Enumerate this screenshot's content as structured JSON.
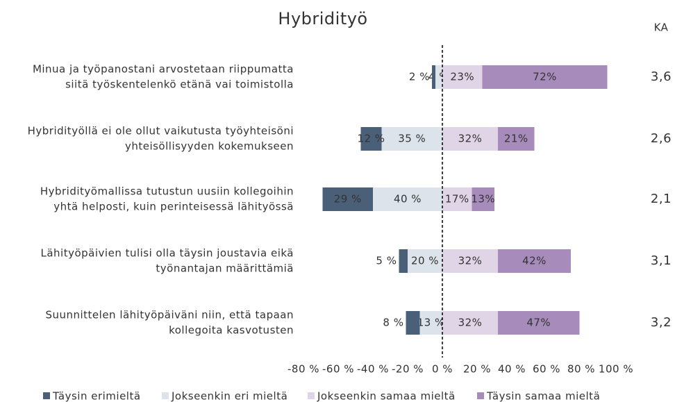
{
  "chart_data": {
    "type": "diverging_bar",
    "title": "Hybridityö",
    "ka_label": "KA",
    "categories": [
      [
        "Minua ja työpanostani arvostetaan riippumatta",
        "siitä työskentelenkö etänä vai toimistolla"
      ],
      [
        "Hybridityöllä ei ole ollut vaikutusta työyhteisöni",
        "yhteisöllisyyden kokemukseen"
      ],
      [
        "Hybridityömallissa tutustun uusiin kollegoihin",
        "yhtä helposti, kuin perinteisessä lähityössä"
      ],
      [
        "Lähityöpäivien tulisi olla täysin joustavia eikä",
        "työnantajan määrittämiä"
      ],
      [
        "Suunnittelen lähityöpäiväni niin, että tapaan",
        "kollegoita kasvotusten"
      ]
    ],
    "ka": [
      "3,6",
      "2,6",
      "2,1",
      "3,1",
      "3,2"
    ],
    "series": [
      {
        "name": "Täysin erimieltä",
        "color": "#4a6078",
        "values": [
          2,
          12,
          29,
          5,
          8
        ],
        "value_labels": [
          "2 %",
          "12 %",
          "29 %",
          "5 %",
          "8 %"
        ]
      },
      {
        "name": "Jokseenkin eri mieltä",
        "color": "#dce3ea",
        "values": [
          4,
          35,
          40,
          20,
          13
        ],
        "value_labels": [
          "4 %",
          "35 %",
          "40 %",
          "20 %",
          "13 %"
        ]
      },
      {
        "name": "Jokseenkin samaa mieltä",
        "color": "#e0d5e6",
        "values": [
          23,
          32,
          17,
          32,
          32
        ],
        "value_labels": [
          "23%",
          "32%",
          "17%",
          "32%",
          "32%"
        ]
      },
      {
        "name": "Täysin samaa mieltä",
        "color": "#a68bbb",
        "values": [
          72,
          21,
          13,
          42,
          47
        ],
        "value_labels": [
          "72%",
          "21%",
          "13%",
          "42%",
          "47%"
        ]
      }
    ],
    "xlim": [
      -80,
      100
    ],
    "xticks": [
      {
        "value": -80,
        "label": "-80 %"
      },
      {
        "value": -60,
        "label": "-60 %"
      },
      {
        "value": -40,
        "label": "-40 %"
      },
      {
        "value": -20,
        "label": "-20 %"
      },
      {
        "value": 0,
        "label": "0 %"
      },
      {
        "value": 20,
        "label": "20 %"
      },
      {
        "value": 40,
        "label": "40 %"
      },
      {
        "value": 60,
        "label": "60 %"
      },
      {
        "value": 80,
        "label": "80 %"
      },
      {
        "value": 100,
        "label": "100 %"
      }
    ]
  }
}
